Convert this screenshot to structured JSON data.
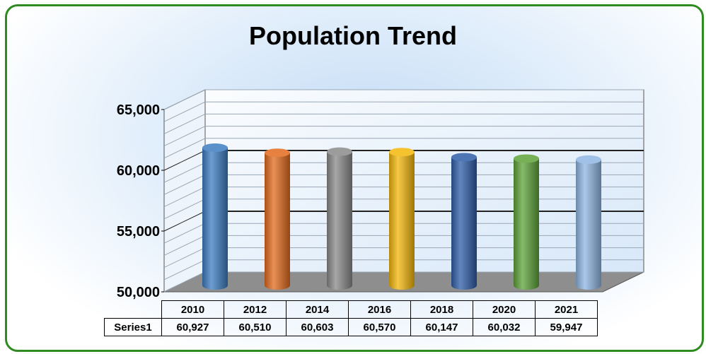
{
  "chart_data": {
    "type": "bar",
    "title": "Population Trend",
    "categories": [
      "2010",
      "2012",
      "2014",
      "2016",
      "2018",
      "2020",
      "2021"
    ],
    "series": [
      {
        "name": "Series1",
        "values": [
          60927,
          60510,
          60603,
          60570,
          60147,
          60032,
          59947
        ]
      }
    ],
    "value_labels": [
      "60,927",
      "60,510",
      "60,603",
      "60,570",
      "60,147",
      "60,032",
      "59,947"
    ],
    "ylim": [
      50000,
      65000
    ],
    "yticks": [
      "65,000",
      "60,000",
      "55,000",
      "50,000"
    ],
    "grid": true,
    "data_table": true,
    "colors": [
      "#3d7dc1",
      "#e26b1d",
      "#8a8a8a",
      "#f3b70b",
      "#2f5ea8",
      "#5ea33a",
      "#8fb6e3"
    ]
  }
}
